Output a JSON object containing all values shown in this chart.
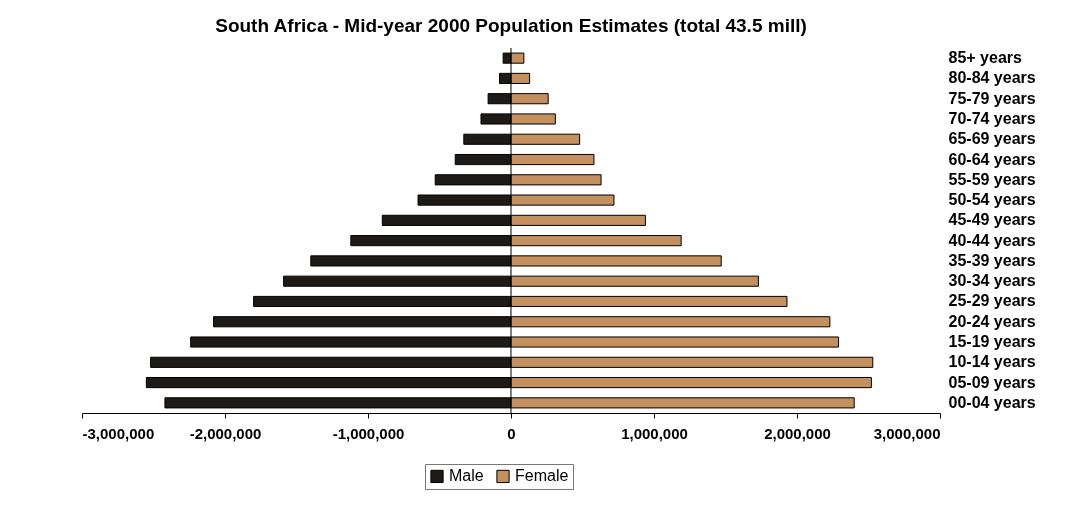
{
  "chart_data": {
    "type": "bar",
    "orientation": "horizontal",
    "title": "South Africa - Mid-year 2000 Population Estimates (total 43.5 mill)",
    "categories": [
      "85+ years",
      "80-84 years",
      "75-79 years",
      "70-74 years",
      "65-69 years",
      "60-64 years",
      "55-59 years",
      "50-54 years",
      "45-49 years",
      "40-44 years",
      "35-39 years",
      "30-34 years",
      "25-29 years",
      "20-24 years",
      "15-19 years",
      "10-14 years",
      "05-09 years",
      "00-04 years"
    ],
    "series": [
      {
        "name": "Male",
        "color": "#1e1a17",
        "values": [
          -55000,
          -80000,
          -160000,
          -210000,
          -330000,
          -390000,
          -530000,
          -650000,
          -900000,
          -1120000,
          -1400000,
          -1590000,
          -1800000,
          -2080000,
          -2240000,
          -2520000,
          -2550000,
          -2420000
        ]
      },
      {
        "name": "Female",
        "color": "#c49060",
        "values": [
          90000,
          130000,
          260000,
          310000,
          480000,
          580000,
          630000,
          720000,
          940000,
          1190000,
          1470000,
          1730000,
          1930000,
          2230000,
          2290000,
          2530000,
          2520000,
          2400000
        ]
      }
    ],
    "xlim": [
      -3000000,
      3000000
    ],
    "xticks": [
      {
        "value": -3000000,
        "label": "-3,000,000"
      },
      {
        "value": -2000000,
        "label": "-2,000,000"
      },
      {
        "value": -1000000,
        "label": "-1,000,000"
      },
      0,
      {
        "value": 1000000,
        "label": "1,000,000"
      },
      {
        "value": 2000000,
        "label": "2,000,000"
      },
      {
        "value": 3000000,
        "label": "3,000,000"
      }
    ],
    "stacked": true,
    "ref_lines": [
      {
        "axis": "x",
        "value": 0
      }
    ],
    "grid": false,
    "legend": "bottom"
  }
}
